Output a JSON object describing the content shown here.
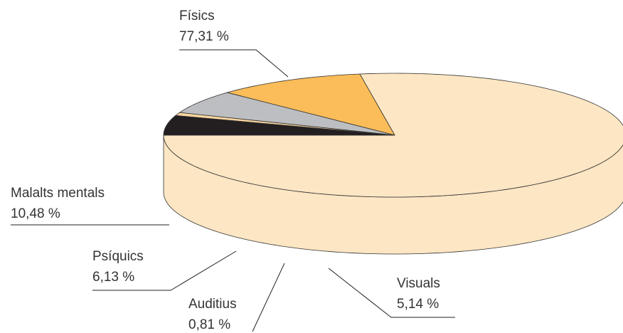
{
  "chart_data": {
    "type": "pie",
    "categories": [
      "Físics",
      "Malalts mentals",
      "Psíquics",
      "Auditius",
      "Visuals"
    ],
    "values": [
      77.31,
      10.48,
      6.13,
      0.81,
      5.14
    ],
    "value_labels": [
      "77,31 %",
      "10,48 %",
      "6,13 %",
      "0,81 %",
      "5,14 %"
    ],
    "colors": [
      "#fde6c3",
      "#fbbd59",
      "#bdbec1",
      "#fcd6a0",
      "#231f20"
    ]
  }
}
